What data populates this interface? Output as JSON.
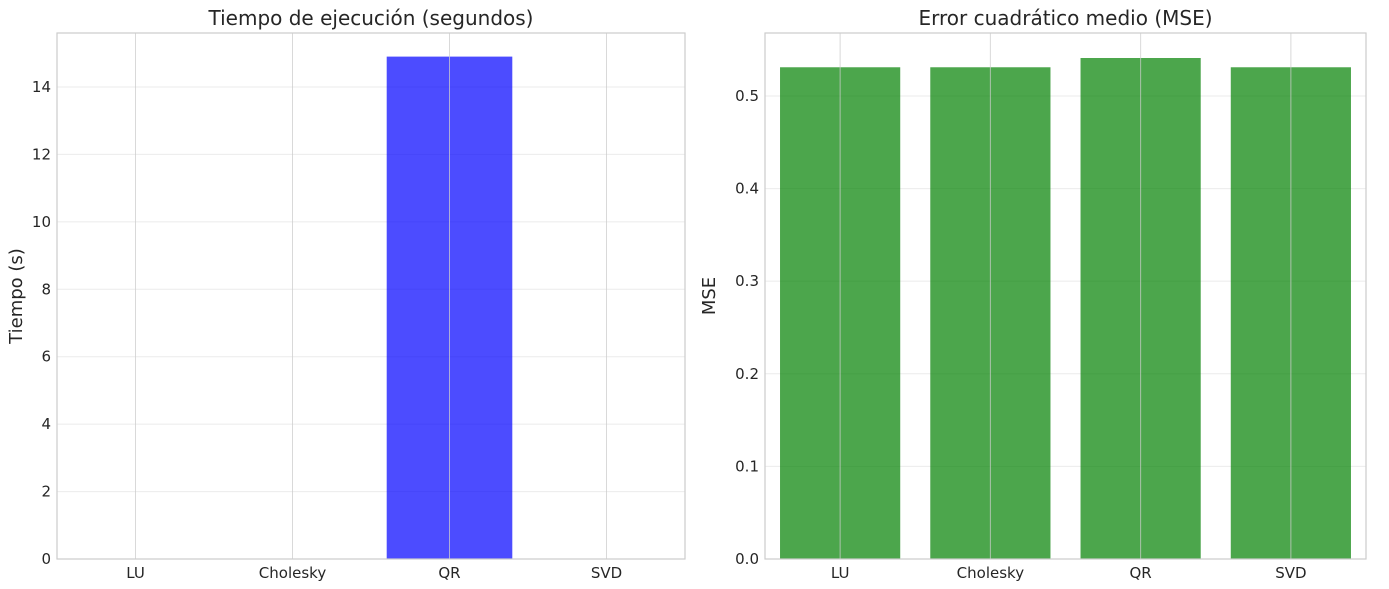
{
  "chart_data": [
    {
      "type": "bar",
      "title": "Tiempo de ejecución (segundos)",
      "xlabel": "",
      "ylabel": "Tiempo (s)",
      "categories": [
        "LU",
        "Cholesky",
        "QR",
        "SVD"
      ],
      "values": [
        0.002,
        0.002,
        14.9,
        0.004
      ],
      "ylim": [
        0,
        15.6
      ],
      "yticks": [
        0,
        2,
        4,
        6,
        8,
        10,
        12,
        14
      ],
      "ytick_labels": [
        "0",
        "2",
        "4",
        "6",
        "8",
        "10",
        "12",
        "14"
      ],
      "color": "#0000ff",
      "bar_opacity": 0.7,
      "grid": true,
      "legend": "none"
    },
    {
      "type": "bar",
      "title": "Error cuadrático medio (MSE)",
      "xlabel": "",
      "ylabel": "MSE",
      "categories": [
        "LU",
        "Cholesky",
        "QR",
        "SVD"
      ],
      "values": [
        0.531,
        0.531,
        0.541,
        0.531
      ],
      "ylim": [
        0,
        0.568
      ],
      "yticks": [
        0,
        0.1,
        0.2,
        0.3,
        0.4,
        0.5
      ],
      "ytick_labels": [
        "0.0",
        "0.1",
        "0.2",
        "0.3",
        "0.4",
        "0.5"
      ],
      "color": "#008000",
      "bar_opacity": 0.7,
      "grid": true,
      "legend": "none"
    }
  ]
}
